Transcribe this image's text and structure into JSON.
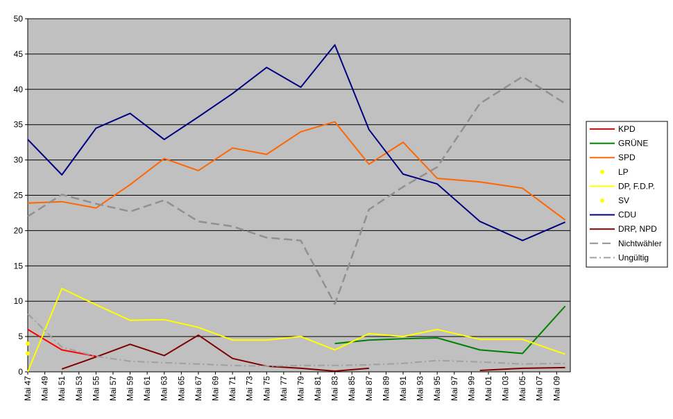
{
  "chart_data": {
    "type": "line",
    "categories": [
      "Mai 47",
      "Mai 49",
      "Mai 51",
      "Mai 53",
      "Mai 55",
      "Mai 57",
      "Mai 59",
      "Mai 61",
      "Mai 63",
      "Mai 65",
      "Mai 67",
      "Mai 69",
      "Mai 71",
      "Mai 73",
      "Mai 75",
      "Mai 77",
      "Mai 79",
      "Mai 81",
      "Mai 83",
      "Mai 85",
      "Mai 87",
      "Mai 89",
      "Mai 91",
      "Mai 93",
      "Mai 95",
      "Mai 97",
      "Mai 99",
      "Mai 01",
      "Mai 03",
      "Mai 05",
      "Mai 07",
      "Mai 09"
    ],
    "x": [
      1947,
      1951,
      1955,
      1959,
      1963,
      1967,
      1971,
      1975,
      1979,
      1983,
      1987,
      1991,
      1995,
      2000,
      2005,
      2010
    ],
    "ylim": [
      0,
      50
    ],
    "yticks": [
      0,
      5,
      10,
      15,
      20,
      25,
      30,
      35,
      40,
      45,
      50
    ],
    "xlim": [
      1947,
      2010.6
    ],
    "grid": true,
    "legend_position": "right",
    "colors": {
      "plot_background": "#c0c0c0",
      "gridline": "#000000"
    },
    "series": [
      {
        "name": "KPD",
        "color": "#ff0000",
        "style": "solid",
        "values": [
          6.0,
          3.1,
          2.2,
          null,
          null,
          null,
          null,
          null,
          null,
          null,
          null,
          null,
          null,
          null,
          null,
          null
        ]
      },
      {
        "name": "GRÜNE",
        "color": "#008000",
        "style": "solid",
        "values": [
          null,
          null,
          null,
          null,
          null,
          null,
          null,
          null,
          null,
          4.0,
          4.5,
          4.7,
          4.8,
          3.1,
          2.6,
          9.3
        ]
      },
      {
        "name": "SPD",
        "color": "#ff6600",
        "style": "solid",
        "values": [
          23.9,
          24.1,
          23.2,
          26.5,
          30.2,
          28.5,
          31.7,
          30.8,
          34.0,
          35.4,
          29.4,
          32.5,
          27.4,
          26.9,
          26.0,
          21.5
        ]
      },
      {
        "name": "LP",
        "color": "#ffff00",
        "style": "marker",
        "values": [
          4.0,
          null,
          null,
          null,
          null,
          null,
          null,
          null,
          null,
          null,
          null,
          null,
          null,
          null,
          null,
          null
        ]
      },
      {
        "name": "DP, F.D.P.",
        "color": "#ffff00",
        "style": "solid",
        "values": [
          0.0,
          11.8,
          9.5,
          7.3,
          7.4,
          6.3,
          4.5,
          4.5,
          5.0,
          3.1,
          5.4,
          5.0,
          6.0,
          4.6,
          4.6,
          2.5
        ]
      },
      {
        "name": "SV",
        "color": "#ffff00",
        "style": "marker",
        "values": [
          2.6,
          null,
          null,
          null,
          null,
          null,
          null,
          null,
          null,
          null,
          null,
          null,
          null,
          null,
          null,
          null
        ]
      },
      {
        "name": "CDU",
        "color": "#000080",
        "style": "solid",
        "values": [
          32.9,
          27.9,
          34.5,
          36.6,
          32.9,
          36.1,
          39.4,
          43.1,
          40.3,
          46.3,
          34.3,
          28.0,
          26.6,
          21.3,
          18.6,
          21.2
        ]
      },
      {
        "name": "DRP, NPD",
        "color": "#800000",
        "style": "solid",
        "values": [
          null,
          0.4,
          2.1,
          3.9,
          2.3,
          5.2,
          1.9,
          0.8,
          0.5,
          0.1,
          0.5,
          null,
          null,
          0.2,
          0.5,
          0.6
        ]
      },
      {
        "name": "Nichtwähler",
        "color": "#909090",
        "style": "dash",
        "values": [
          22.0,
          25.1,
          23.8,
          22.7,
          24.3,
          21.3,
          20.6,
          19.0,
          18.6,
          9.6,
          23.0,
          26.2,
          29.0,
          38.0,
          41.8,
          38.0
        ]
      },
      {
        "name": "Ungültig",
        "color": "#a0a0a0",
        "style": "dashdot",
        "values": [
          8.2,
          3.5,
          2.2,
          1.5,
          1.3,
          1.1,
          0.9,
          0.8,
          0.9,
          0.9,
          1.0,
          1.2,
          1.6,
          1.4,
          1.1,
          1.2
        ]
      }
    ]
  }
}
